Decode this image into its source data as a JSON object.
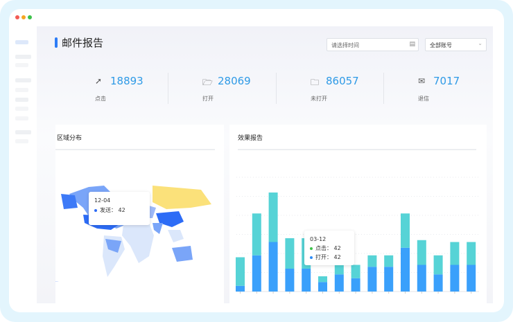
{
  "window": {
    "dots": [
      "#f25b55",
      "#f5a623",
      "#3ec24b"
    ]
  },
  "header": {
    "title": "邮件报告",
    "date_placeholder": "请选择时间",
    "account_select": "全部账号"
  },
  "stats": [
    {
      "icon": "cursor-click-icon",
      "value": "18893",
      "label": "点击"
    },
    {
      "icon": "folder-open-icon",
      "value": "28069",
      "label": "打开"
    },
    {
      "icon": "folder-icon",
      "value": "86057",
      "label": "未打开"
    },
    {
      "icon": "mail-bounce-icon",
      "value": "7017",
      "label": "退信"
    }
  ],
  "region_panel": {
    "title": "区域分布",
    "tooltip": {
      "date": "12-04",
      "series": "发送：",
      "value": "42"
    },
    "colors": {
      "high": "#2d6cf6",
      "mid": "#7aa5f8",
      "low": "#dbe7fb",
      "highlight": "#fbe17a"
    }
  },
  "effect_panel": {
    "title": "效果报告",
    "tooltip": {
      "date": "03-12",
      "rows": [
        {
          "label": "点击：",
          "value": "42",
          "color": "#3ec24b"
        },
        {
          "label": "打开：",
          "value": "42",
          "color": "#2d8cf6"
        }
      ]
    }
  },
  "chart_data": {
    "type": "bar",
    "stacked": true,
    "grid": true,
    "ylim": [
      0,
      60
    ],
    "series": [
      {
        "values": [
          3,
          19,
          26,
          12,
          12,
          5,
          9,
          7,
          13,
          13,
          23,
          14,
          9,
          14,
          14
        ],
        "color": "#3aa0fb"
      },
      {
        "values": [
          15,
          22,
          26,
          16,
          16,
          3,
          17,
          7,
          6,
          6,
          18,
          13,
          10,
          12,
          12
        ],
        "color": "#56d3d6"
      }
    ]
  }
}
